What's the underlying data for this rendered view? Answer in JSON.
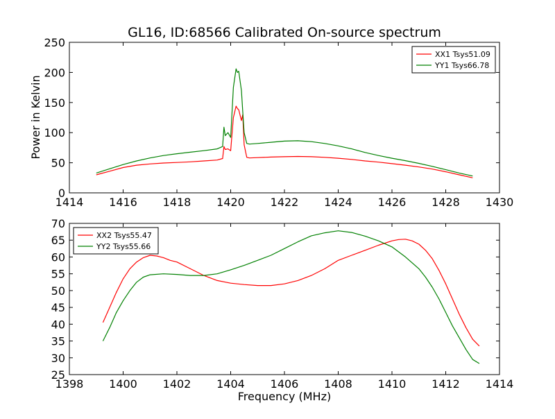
{
  "colors": {
    "red": "#ff0000",
    "green": "#008000",
    "frame": "#000000"
  },
  "chart_data": [
    {
      "type": "line",
      "title": "GL16, ID:68566 Calibrated On-source spectrum",
      "xlabel": "",
      "ylabel": "Power in Kelvin",
      "xlim": [
        1414,
        1430
      ],
      "ylim": [
        0,
        250
      ],
      "xticks": [
        1414,
        1416,
        1418,
        1420,
        1422,
        1424,
        1426,
        1428,
        1430
      ],
      "yticks": [
        0,
        50,
        100,
        150,
        200,
        250
      ],
      "legend_position": "top-right",
      "series": [
        {
          "name": "XX1 Tsys51.09",
          "color": "#ff0000",
          "x": [
            1415.0,
            1415.5,
            1416.0,
            1416.5,
            1417.0,
            1417.5,
            1418.0,
            1418.5,
            1419.0,
            1419.5,
            1419.7,
            1419.75,
            1419.8,
            1419.9,
            1420.0,
            1420.1,
            1420.2,
            1420.25,
            1420.3,
            1420.4,
            1420.45,
            1420.5,
            1420.6,
            1420.7,
            1421.0,
            1421.5,
            1422.0,
            1422.5,
            1423.0,
            1423.5,
            1424.0,
            1424.5,
            1425.0,
            1425.5,
            1426.0,
            1426.5,
            1427.0,
            1427.5,
            1428.0,
            1428.5,
            1429.0
          ],
          "y": [
            30,
            36,
            42,
            46,
            48,
            49.5,
            50.5,
            51.5,
            53,
            54.5,
            57,
            77,
            72,
            73,
            70,
            125,
            144,
            140,
            138,
            120,
            130,
            80,
            59,
            58,
            58.5,
            59.5,
            60,
            60.5,
            60,
            59,
            57.5,
            55.5,
            53,
            51,
            48.5,
            46,
            43,
            39.5,
            35,
            30,
            25
          ]
        },
        {
          "name": "YY1 Tsys66.78",
          "color": "#008000",
          "x": [
            1415.0,
            1415.5,
            1416.0,
            1416.5,
            1417.0,
            1417.5,
            1418.0,
            1418.5,
            1419.0,
            1419.5,
            1419.7,
            1419.75,
            1419.8,
            1419.9,
            1420.0,
            1420.1,
            1420.2,
            1420.25,
            1420.3,
            1420.4,
            1420.45,
            1420.5,
            1420.6,
            1420.7,
            1421.0,
            1421.5,
            1422.0,
            1422.5,
            1423.0,
            1423.5,
            1424.0,
            1424.5,
            1425.0,
            1425.5,
            1426.0,
            1426.5,
            1427.0,
            1427.5,
            1428.0,
            1428.5,
            1429.0
          ],
          "y": [
            33,
            40,
            47,
            53,
            58,
            62,
            65,
            67.5,
            70,
            73,
            77,
            109,
            95,
            100,
            92,
            175,
            206,
            200,
            202,
            170,
            135,
            100,
            82,
            81,
            82,
            84,
            86,
            86.5,
            85,
            82,
            78,
            73,
            67,
            62,
            57.5,
            53.5,
            49,
            44,
            38.5,
            33,
            28
          ]
        }
      ]
    },
    {
      "type": "line",
      "title": "",
      "xlabel": "Frequency (MHz)",
      "ylabel": "",
      "xlim": [
        1398,
        1414
      ],
      "ylim": [
        25,
        70
      ],
      "xticks": [
        1398,
        1400,
        1402,
        1404,
        1406,
        1408,
        1410,
        1412,
        1414
      ],
      "yticks": [
        25,
        30,
        35,
        40,
        45,
        50,
        55,
        60,
        65,
        70
      ],
      "legend_position": "top-left",
      "series": [
        {
          "name": "XX2 Tsys55.47",
          "color": "#ff0000",
          "x": [
            1399.25,
            1399.5,
            1399.75,
            1400.0,
            1400.25,
            1400.5,
            1400.75,
            1401.0,
            1401.25,
            1401.5,
            1401.75,
            1402.0,
            1402.5,
            1403.0,
            1403.5,
            1404.0,
            1404.5,
            1405.0,
            1405.5,
            1406.0,
            1406.5,
            1407.0,
            1407.5,
            1408.0,
            1408.5,
            1409.0,
            1409.5,
            1410.0,
            1410.25,
            1410.5,
            1410.75,
            1411.0,
            1411.25,
            1411.5,
            1411.75,
            1412.0,
            1412.25,
            1412.5,
            1412.75,
            1413.0,
            1413.25
          ],
          "y": [
            40.5,
            45,
            49.5,
            53.5,
            56.5,
            58.5,
            59.8,
            60.5,
            60.3,
            59.8,
            59,
            58.5,
            56.5,
            54.5,
            53,
            52.2,
            51.8,
            51.5,
            51.5,
            52,
            53,
            54.5,
            56.5,
            59,
            60.5,
            62,
            63.5,
            64.8,
            65.2,
            65.3,
            64.8,
            63.8,
            62,
            59.5,
            56,
            52,
            47.5,
            43,
            39,
            35.5,
            33.5
          ]
        },
        {
          "name": "YY2 Tsys55.66",
          "color": "#008000",
          "x": [
            1399.25,
            1399.5,
            1399.75,
            1400.0,
            1400.25,
            1400.5,
            1400.75,
            1401.0,
            1401.5,
            1402.0,
            1402.5,
            1403.0,
            1403.5,
            1404.0,
            1404.5,
            1405.0,
            1405.5,
            1406.0,
            1406.5,
            1407.0,
            1407.5,
            1408.0,
            1408.5,
            1409.0,
            1409.5,
            1410.0,
            1410.5,
            1411.0,
            1411.25,
            1411.5,
            1411.75,
            1412.0,
            1412.25,
            1412.5,
            1412.75,
            1413.0,
            1413.25
          ],
          "y": [
            35,
            39,
            43.5,
            47,
            50,
            52.5,
            54,
            54.7,
            55,
            54.8,
            54.5,
            54.5,
            55,
            56.2,
            57.5,
            59,
            60.5,
            62.5,
            64.5,
            66.3,
            67.2,
            67.8,
            67.3,
            66.2,
            64.8,
            63,
            60,
            56.5,
            54,
            51,
            47.5,
            43.5,
            39.5,
            36,
            32.5,
            29.5,
            28.3
          ]
        }
      ]
    }
  ]
}
